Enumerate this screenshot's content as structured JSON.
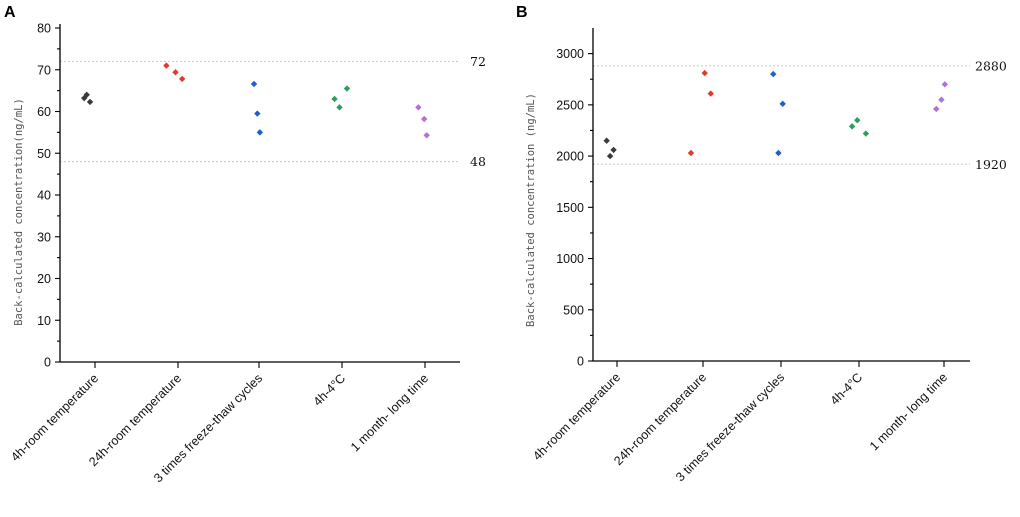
{
  "chart_data": [
    {
      "type": "scatter",
      "panel_label": "A",
      "ylabel": "Back-calculated concentration(ng/mL)",
      "xlabel": "",
      "ylim": [
        0,
        80
      ],
      "yticks": [
        "0",
        "10",
        "20",
        "30",
        "40",
        "50",
        "60",
        "70",
        "80"
      ],
      "categories": [
        "4h-room temperature",
        "24h-room temperature",
        "3 times freeze-thaw cycles",
        "4h-4°C",
        "1 month- long time"
      ],
      "reference_lines": [
        {
          "value": 72,
          "label": "72"
        },
        {
          "value": 48,
          "label": "48"
        }
      ],
      "series": [
        {
          "name": "4h-room temperature",
          "color": "#3a3a3a",
          "points": [
            [
              -0.1,
              64.0
            ],
            [
              -0.13,
              63.2
            ],
            [
              -0.06,
              62.3
            ]
          ]
        },
        {
          "name": "24h-room temperature",
          "color": "#e03a2e",
          "points": [
            [
              -0.14,
              71.0
            ],
            [
              -0.03,
              69.4
            ],
            [
              0.05,
              67.8
            ]
          ]
        },
        {
          "name": "3 times freeze-thaw cycles",
          "color": "#1f5fcc",
          "points": [
            [
              -0.06,
              66.6
            ],
            [
              -0.02,
              59.5
            ],
            [
              0.01,
              55.0
            ]
          ]
        },
        {
          "name": "4h-4°C",
          "color": "#2aa05a",
          "points": [
            [
              -0.09,
              63.0
            ],
            [
              -0.03,
              61.0
            ],
            [
              0.06,
              65.5
            ]
          ]
        },
        {
          "name": "1 month- long time",
          "color": "#b070d8",
          "points": [
            [
              -0.08,
              61.0
            ],
            [
              -0.01,
              58.2
            ],
            [
              0.02,
              54.3
            ]
          ]
        }
      ]
    },
    {
      "type": "scatter",
      "panel_label": "B",
      "ylabel": "Back-calculated concentration (ng/mL)",
      "xlabel": "",
      "ylim": [
        0,
        3250
      ],
      "yticks": [
        "0",
        "500",
        "1000",
        "1500",
        "2000",
        "2500",
        "3000"
      ],
      "categories": [
        "4h-room temperature",
        "24h-room temperature",
        "3 times freeze-thaw cycles",
        "4h-4°C",
        "1 month- long time"
      ],
      "reference_lines": [
        {
          "value": 2880,
          "label": "2880"
        },
        {
          "value": 1920,
          "label": "1920"
        }
      ],
      "series": [
        {
          "name": "4h-room temperature",
          "color": "#3a3a3a",
          "points": [
            [
              -0.12,
              2150
            ],
            [
              -0.04,
              2060
            ],
            [
              -0.08,
              2000
            ]
          ]
        },
        {
          "name": "24h-room temperature",
          "color": "#e03a2e",
          "points": [
            [
              -0.14,
              2030
            ],
            [
              0.02,
              2810
            ],
            [
              0.09,
              2610
            ]
          ]
        },
        {
          "name": "3 times freeze-thaw cycles",
          "color": "#1f5fcc",
          "points": [
            [
              -0.09,
              2800
            ],
            [
              -0.03,
              2030
            ],
            [
              0.02,
              2510
            ]
          ]
        },
        {
          "name": "4h-4°C",
          "color": "#2aa05a",
          "points": [
            [
              -0.08,
              2290
            ],
            [
              -0.02,
              2350
            ],
            [
              0.08,
              2220
            ]
          ]
        },
        {
          "name": "1 month- long time",
          "color": "#b070d8",
          "points": [
            [
              -0.09,
              2460
            ],
            [
              -0.03,
              2550
            ],
            [
              0.01,
              2700
            ]
          ]
        }
      ]
    }
  ]
}
